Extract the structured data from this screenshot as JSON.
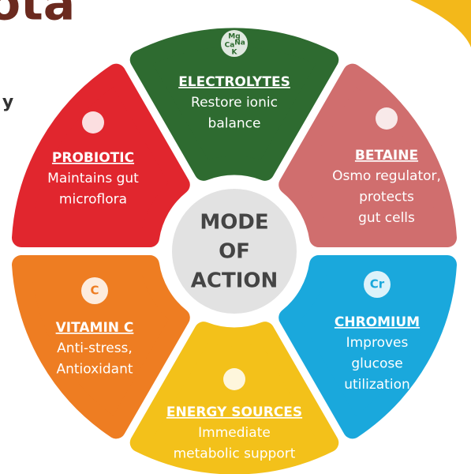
{
  "header": {
    "partial_title": "ota",
    "partial_text": "y"
  },
  "center": {
    "lines": [
      "MODE",
      "OF",
      "ACTION"
    ]
  },
  "petals": [
    {
      "title": "ELECTROLYTES",
      "lines": [
        "Restore ionic",
        "balance"
      ],
      "icon": [
        "Mg",
        "Ca",
        "Na",
        "K"
      ]
    },
    {
      "title": "BETAINE",
      "lines": [
        "Osmo regulator,",
        "protects",
        "gut cells"
      ]
    },
    {
      "title": "CHROMIUM",
      "lines": [
        "Improves",
        "glucose",
        "utilization"
      ],
      "icon": [
        "Cr"
      ]
    },
    {
      "title": "ENERGY SOURCES",
      "lines": [
        "Immediate",
        "metabolic support"
      ]
    },
    {
      "title": "VITAMIN C",
      "lines": [
        "Anti-stress,",
        "Antioxidant"
      ],
      "icon": [
        "C"
      ]
    },
    {
      "title": "PROBIOTIC",
      "lines": [
        "Maintains gut",
        "microflora"
      ]
    }
  ]
}
